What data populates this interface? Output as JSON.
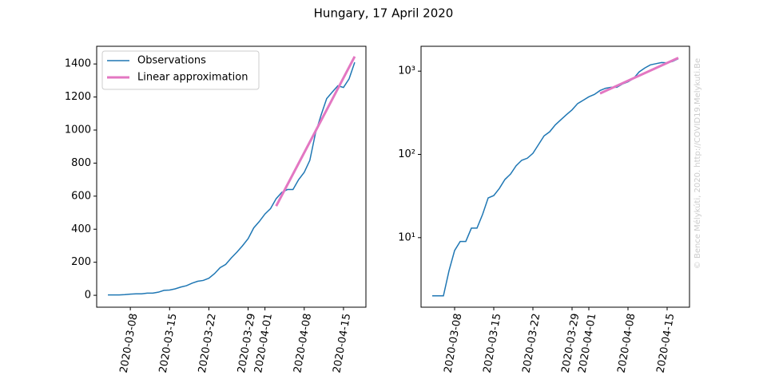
{
  "title": "Hungary, 17 April 2020",
  "watermark": "© Bence Mélykúti, 2020. http://COVID19.Melykuti.Be",
  "chart_data": [
    {
      "type": "line",
      "legend": "upper left",
      "yscale": "linear",
      "xlim": [
        "2020-03-02",
        "2020-04-19"
      ],
      "xticks": [
        "2020-03-08",
        "2020-03-15",
        "2020-03-22",
        "2020-03-29",
        "2020-04-01",
        "2020-04-08",
        "2020-04-15"
      ],
      "ylim": [
        -72,
        1507
      ],
      "yticks": [
        0,
        200,
        400,
        600,
        800,
        1000,
        1200,
        1400
      ],
      "series": [
        {
          "name": "Observations",
          "color": "#1f77b4",
          "width": 1.5,
          "x": [
            "2020-03-04",
            "2020-03-05",
            "2020-03-06",
            "2020-03-07",
            "2020-03-08",
            "2020-03-09",
            "2020-03-10",
            "2020-03-11",
            "2020-03-12",
            "2020-03-13",
            "2020-03-14",
            "2020-03-15",
            "2020-03-16",
            "2020-03-17",
            "2020-03-18",
            "2020-03-19",
            "2020-03-20",
            "2020-03-21",
            "2020-03-22",
            "2020-03-23",
            "2020-03-24",
            "2020-03-25",
            "2020-03-26",
            "2020-03-27",
            "2020-03-28",
            "2020-03-29",
            "2020-03-30",
            "2020-03-31",
            "2020-04-01",
            "2020-04-02",
            "2020-04-03",
            "2020-04-04",
            "2020-04-05",
            "2020-04-06",
            "2020-04-07",
            "2020-04-08",
            "2020-04-09",
            "2020-04-10",
            "2020-04-11",
            "2020-04-12",
            "2020-04-13",
            "2020-04-14",
            "2020-04-15",
            "2020-04-16",
            "2020-04-17"
          ],
          "values": [
            2,
            2,
            2,
            4,
            7,
            9,
            9,
            13,
            13,
            19,
            30,
            32,
            39,
            50,
            58,
            73,
            85,
            90,
            103,
            131,
            167,
            187,
            226,
            261,
            300,
            343,
            408,
            447,
            492,
            525,
            585,
            623,
            640,
            640,
            700,
            744,
            817,
            980,
            1090,
            1190,
            1230,
            1268,
            1258,
            1310,
            1410
          ]
        },
        {
          "name": "Linear approximation",
          "color": "#e377c2",
          "width": 3,
          "x": [
            "2020-04-03",
            "2020-04-17"
          ],
          "values": [
            540,
            1445
          ]
        }
      ]
    },
    {
      "type": "line",
      "yscale": "log",
      "xlim": [
        "2020-03-02",
        "2020-04-19"
      ],
      "xticks": [
        "2020-03-08",
        "2020-03-15",
        "2020-03-22",
        "2020-03-29",
        "2020-04-01",
        "2020-04-08",
        "2020-04-15"
      ],
      "ylim": [
        1.46,
        1990
      ],
      "yticks": [
        {
          "value": 10,
          "label": "10¹"
        },
        {
          "value": 100,
          "label": "10²"
        },
        {
          "value": 1000,
          "label": "10³"
        }
      ],
      "series": [
        {
          "name": "Observations",
          "color": "#1f77b4",
          "width": 1.5,
          "x": [
            "2020-03-04",
            "2020-03-05",
            "2020-03-06",
            "2020-03-07",
            "2020-03-08",
            "2020-03-09",
            "2020-03-10",
            "2020-03-11",
            "2020-03-12",
            "2020-03-13",
            "2020-03-14",
            "2020-03-15",
            "2020-03-16",
            "2020-03-17",
            "2020-03-18",
            "2020-03-19",
            "2020-03-20",
            "2020-03-21",
            "2020-03-22",
            "2020-03-23",
            "2020-03-24",
            "2020-03-25",
            "2020-03-26",
            "2020-03-27",
            "2020-03-28",
            "2020-03-29",
            "2020-03-30",
            "2020-03-31",
            "2020-04-01",
            "2020-04-02",
            "2020-04-03",
            "2020-04-04",
            "2020-04-05",
            "2020-04-06",
            "2020-04-07",
            "2020-04-08",
            "2020-04-09",
            "2020-04-10",
            "2020-04-11",
            "2020-04-12",
            "2020-04-13",
            "2020-04-14",
            "2020-04-15",
            "2020-04-16",
            "2020-04-17"
          ],
          "values": [
            2,
            2,
            2,
            4,
            7,
            9,
            9,
            13,
            13,
            19,
            30,
            32,
            39,
            50,
            58,
            73,
            85,
            90,
            103,
            131,
            167,
            187,
            226,
            261,
            300,
            343,
            408,
            447,
            492,
            525,
            585,
            623,
            640,
            640,
            700,
            744,
            817,
            980,
            1090,
            1190,
            1230,
            1268,
            1258,
            1310,
            1410
          ]
        },
        {
          "name": "Linear approximation",
          "color": "#e377c2",
          "width": 3,
          "x": [
            "2020-04-03",
            "2020-04-17"
          ],
          "values": [
            540,
            1445
          ]
        }
      ]
    }
  ]
}
